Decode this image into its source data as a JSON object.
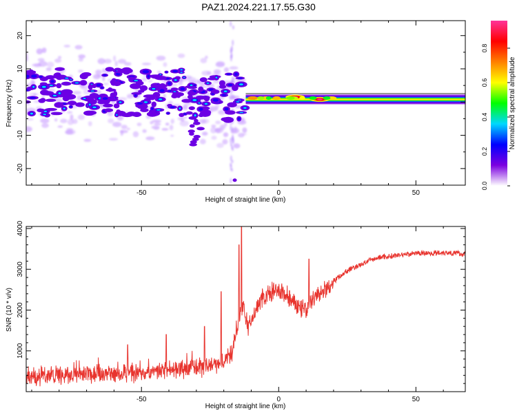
{
  "title": "PAZ1.2024.221.17.55.G30",
  "chart_data": [
    {
      "type": "heatmap",
      "xlabel": "Height of straight line (km)",
      "ylabel": "Frequency (Hz)",
      "xlim": [
        -92,
        68
      ],
      "ylim": [
        -25,
        24.5
      ],
      "xticks": [
        -50,
        0,
        50
      ],
      "yticks": [
        -20,
        -10,
        0,
        10,
        20
      ],
      "colorbar": {
        "label": "Normalized spectral amplitude",
        "range": [
          0,
          0.96
        ],
        "ticks": [
          0.0,
          0.2,
          0.4,
          0.6,
          0.8
        ],
        "tick_labels": [
          "0.0",
          "0.2",
          "0.4",
          "0.6",
          "0.8"
        ],
        "colormap": [
          "#ffffff",
          "#7b00e0",
          "#0000ff",
          "#00d8ff",
          "#00ff00",
          "#ffff00",
          "#ff8000",
          "#ff0000",
          "#ff3399"
        ]
      },
      "features": [
        {
          "desc": "scattered low-altitude returns",
          "x_range": [
            -92,
            -12
          ],
          "freq_range": [
            -12,
            12
          ],
          "amplitude": 0.1
        },
        {
          "desc": "stable carrier line",
          "x_range": [
            -12,
            68
          ],
          "freq_center": 0.8,
          "amplitude": 0.55
        },
        {
          "desc": "peak",
          "x": 6,
          "freq": 1.5,
          "amplitude": 0.95
        },
        {
          "desc": "peak",
          "x": 15,
          "freq": 0.8,
          "amplitude": 0.95
        }
      ]
    },
    {
      "type": "line",
      "xlabel": "Height of straight line (km)",
      "ylabel": "SNR (10 * v/v)",
      "xlim": [
        -92,
        68
      ],
      "ylim": [
        0,
        4050
      ],
      "xticks": [
        -50,
        0,
        50
      ],
      "yticks": [
        1000,
        2000,
        3000,
        4000
      ],
      "color": "#e8342e",
      "series": [
        {
          "x": [
            -92,
            -85,
            -80,
            -75,
            -70,
            -65,
            -60,
            -55,
            -50,
            -45,
            -40,
            -35,
            -30,
            -25,
            -20,
            -17,
            -15,
            -13,
            -11,
            -9,
            -7,
            -5,
            -3,
            0,
            3,
            5,
            8,
            10,
            12,
            15,
            18,
            20,
            23,
            25,
            28,
            30,
            33,
            35,
            38,
            40,
            45,
            50,
            55,
            60,
            65,
            68
          ],
          "values": [
            300,
            350,
            380,
            360,
            400,
            380,
            420,
            400,
            450,
            420,
            500,
            520,
            560,
            600,
            700,
            900,
            1600,
            2100,
            1500,
            1850,
            2150,
            2300,
            2350,
            2400,
            2300,
            2150,
            2000,
            1950,
            2200,
            2350,
            2500,
            2700,
            2850,
            2950,
            3050,
            3100,
            3200,
            3250,
            3300,
            3300,
            3350,
            3380,
            3380,
            3400,
            3380,
            3350
          ]
        }
      ],
      "spikes": [
        {
          "x": -13.5,
          "value": 4050
        },
        {
          "x": -14.5,
          "value": 3600
        },
        {
          "x": -21,
          "value": 2450
        },
        {
          "x": 11,
          "value": 3250
        },
        {
          "x": -41,
          "value": 1400
        },
        {
          "x": -55,
          "value": 1150
        },
        {
          "x": -27,
          "value": 1600
        }
      ]
    }
  ]
}
